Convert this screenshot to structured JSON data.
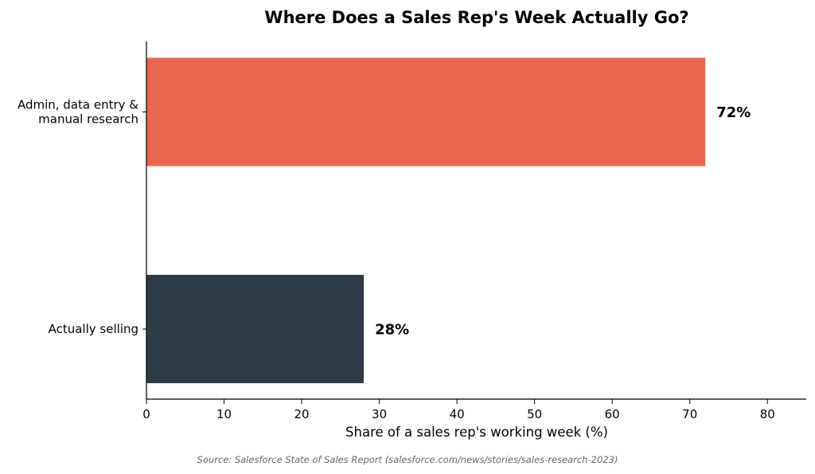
{
  "chart_data": {
    "type": "bar",
    "orientation": "horizontal",
    "title": "Where Does a Sales Rep's Week Actually Go?",
    "xlabel": "Share of a sales rep's working week (%)",
    "ylabel": "",
    "xlim": [
      0,
      85
    ],
    "x_ticks": [
      0,
      10,
      20,
      30,
      40,
      50,
      60,
      70,
      80
    ],
    "categories": [
      [
        "Admin, data entry &",
        "manual research"
      ],
      [
        "Actually selling"
      ]
    ],
    "values": [
      72,
      28
    ],
    "data_labels": [
      "72%",
      "28%"
    ],
    "colors": [
      "#E96651",
      "#2E3A46"
    ],
    "grid": false,
    "legend": "none",
    "source": "Source: Salesforce State of Sales Report (salesforce.com/news/stories/sales-research-2023)"
  }
}
